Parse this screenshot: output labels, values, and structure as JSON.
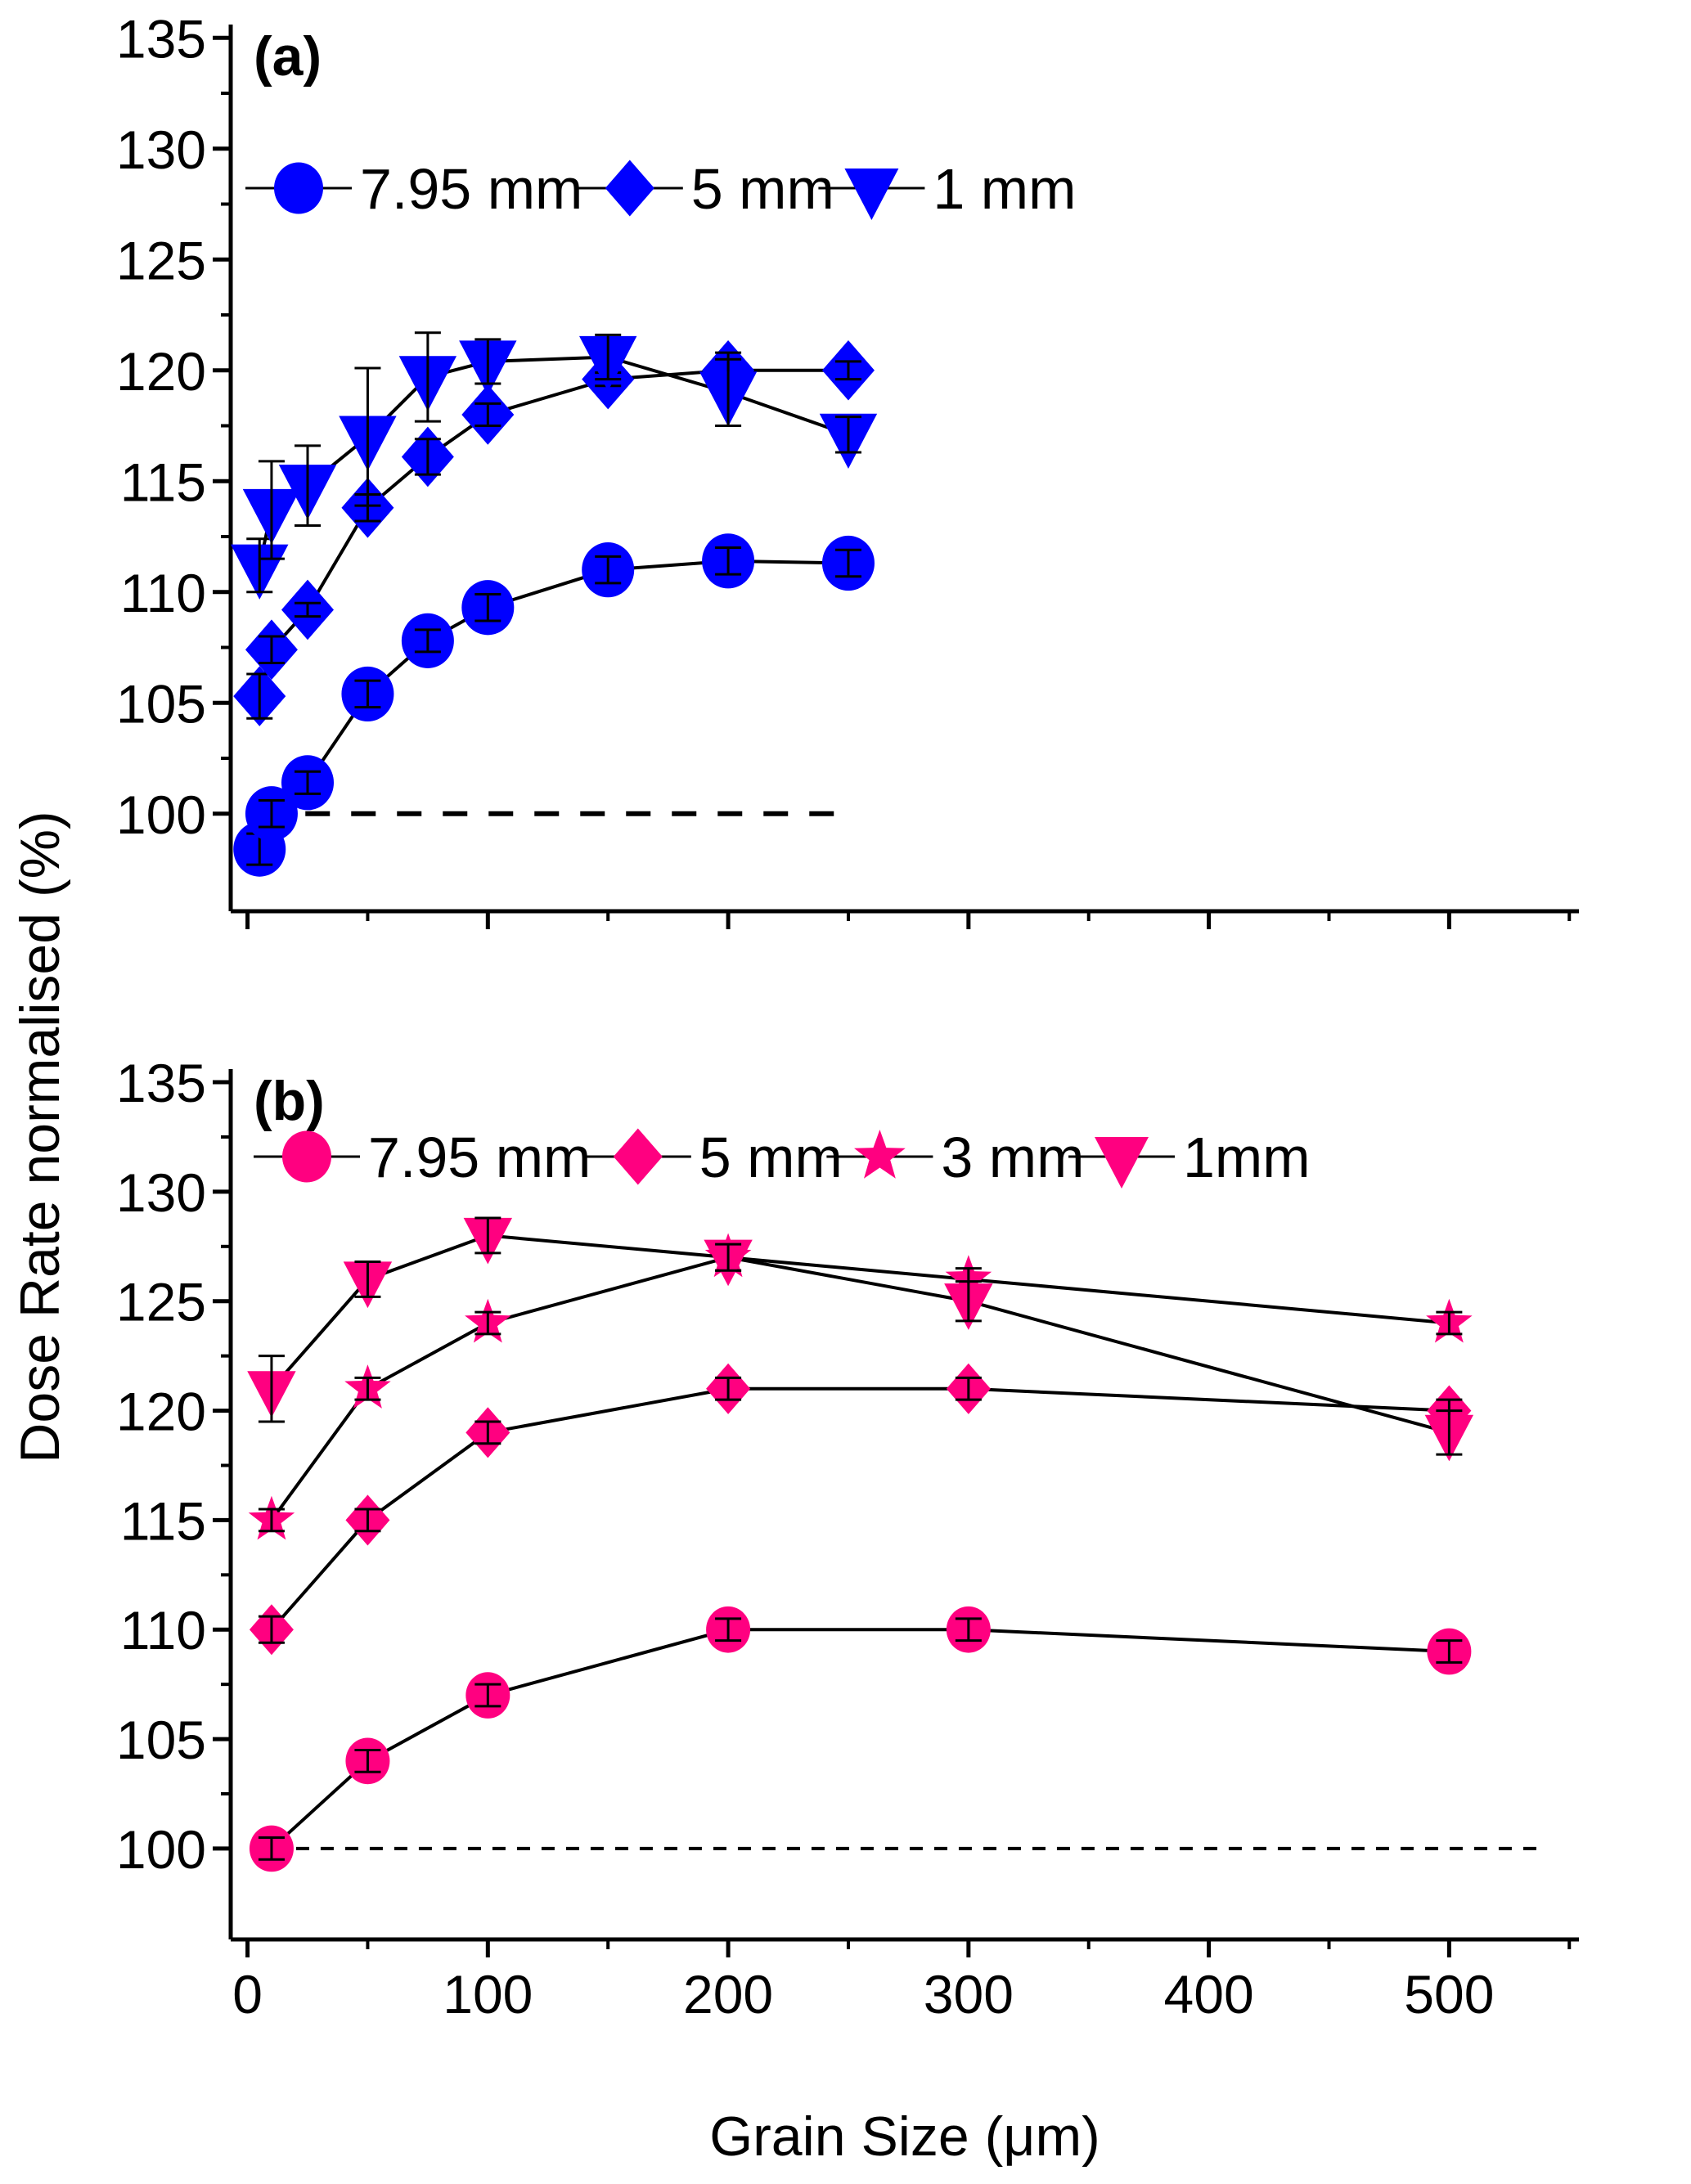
{
  "chart_data": [
    {
      "type": "line",
      "panel_label": "(a)",
      "xlim": [
        -7,
        554
      ],
      "ylim": [
        95.6,
        135.6
      ],
      "yticks": [
        100,
        105,
        110,
        115,
        120,
        125,
        130,
        135
      ],
      "xticks": [
        0,
        100,
        200,
        300,
        400,
        500
      ],
      "show_xtick_labels": false,
      "color": "#0000ff",
      "reference_line": {
        "y": 100,
        "x": [
          5,
          250
        ],
        "style": "dashed"
      },
      "legend_position": "top",
      "series": [
        {
          "name": "7.95 mm",
          "marker": "circle",
          "x": [
            5,
            10,
            25,
            50,
            75,
            100,
            150,
            200,
            250
          ],
          "values": [
            98.4,
            100,
            101.4,
            105.4,
            107.8,
            109.3,
            111,
            111.4,
            111.3
          ],
          "yerr": [
            0.7,
            0.6,
            0.5,
            0.6,
            0.5,
            0.6,
            0.6,
            0.6,
            0.6
          ]
        },
        {
          "name": "5 mm",
          "marker": "diamond",
          "x": [
            5,
            10,
            25,
            50,
            75,
            100,
            150,
            200,
            250
          ],
          "values": [
            105.3,
            107.4,
            109.2,
            113.8,
            116.1,
            118,
            119.6,
            120,
            120
          ],
          "yerr": [
            1.0,
            0.6,
            0.3,
            0.6,
            0.8,
            0.5,
            0.3,
            0.8,
            0.4
          ]
        },
        {
          "name": "1 mm",
          "marker": "triangle-down",
          "x": [
            5,
            10,
            25,
            50,
            75,
            100,
            150,
            200,
            250
          ],
          "values": [
            111.2,
            113.7,
            114.8,
            117,
            119.7,
            120.4,
            120.6,
            119,
            117.1
          ],
          "yerr": [
            1.2,
            2.2,
            1.8,
            3.1,
            2.0,
            1.0,
            1.0,
            1.5,
            0.8
          ]
        }
      ]
    },
    {
      "type": "line",
      "panel_label": "(b)",
      "xlim": [
        -7,
        554
      ],
      "ylim": [
        95.85,
        135.6
      ],
      "yticks": [
        100,
        105,
        110,
        115,
        120,
        125,
        130,
        135
      ],
      "xticks": [
        0,
        100,
        200,
        300,
        400,
        500
      ],
      "show_xtick_labels": true,
      "color": "#ff0080",
      "reference_line": {
        "y": 100,
        "x": [
          10,
          540
        ],
        "style": "dashed"
      },
      "legend_position": "top",
      "series": [
        {
          "name": "7.95 mm",
          "marker": "circle",
          "x": [
            10,
            50,
            100,
            200,
            300,
            500
          ],
          "values": [
            100,
            104,
            107,
            110,
            110,
            109
          ],
          "yerr": [
            0.5,
            0.5,
            0.5,
            0.5,
            0.5,
            0.5
          ]
        },
        {
          "name": "5 mm",
          "marker": "diamond",
          "x": [
            10,
            50,
            100,
            200,
            300,
            500
          ],
          "values": [
            110,
            115,
            119,
            121,
            121,
            120
          ],
          "yerr": [
            0.6,
            0.5,
            0.5,
            0.5,
            0.5,
            0.5
          ]
        },
        {
          "name": "3 mm",
          "marker": "star",
          "x": [
            10,
            50,
            100,
            200,
            300,
            500
          ],
          "values": [
            115,
            121,
            124,
            127,
            126,
            124
          ],
          "yerr": [
            0.5,
            0.5,
            0.5,
            0.6,
            0.5,
            0.5
          ]
        },
        {
          "name": "1mm",
          "marker": "triangle-down",
          "x": [
            10,
            50,
            100,
            200,
            300,
            500
          ],
          "values": [
            121,
            126,
            128,
            127,
            125,
            119
          ],
          "yerr": [
            1.5,
            0.8,
            0.8,
            0.6,
            0.9,
            1.0
          ]
        }
      ]
    }
  ],
  "ylabel": "Dose Rate normalised (%)",
  "xlabel": "Grain Size (μm)"
}
